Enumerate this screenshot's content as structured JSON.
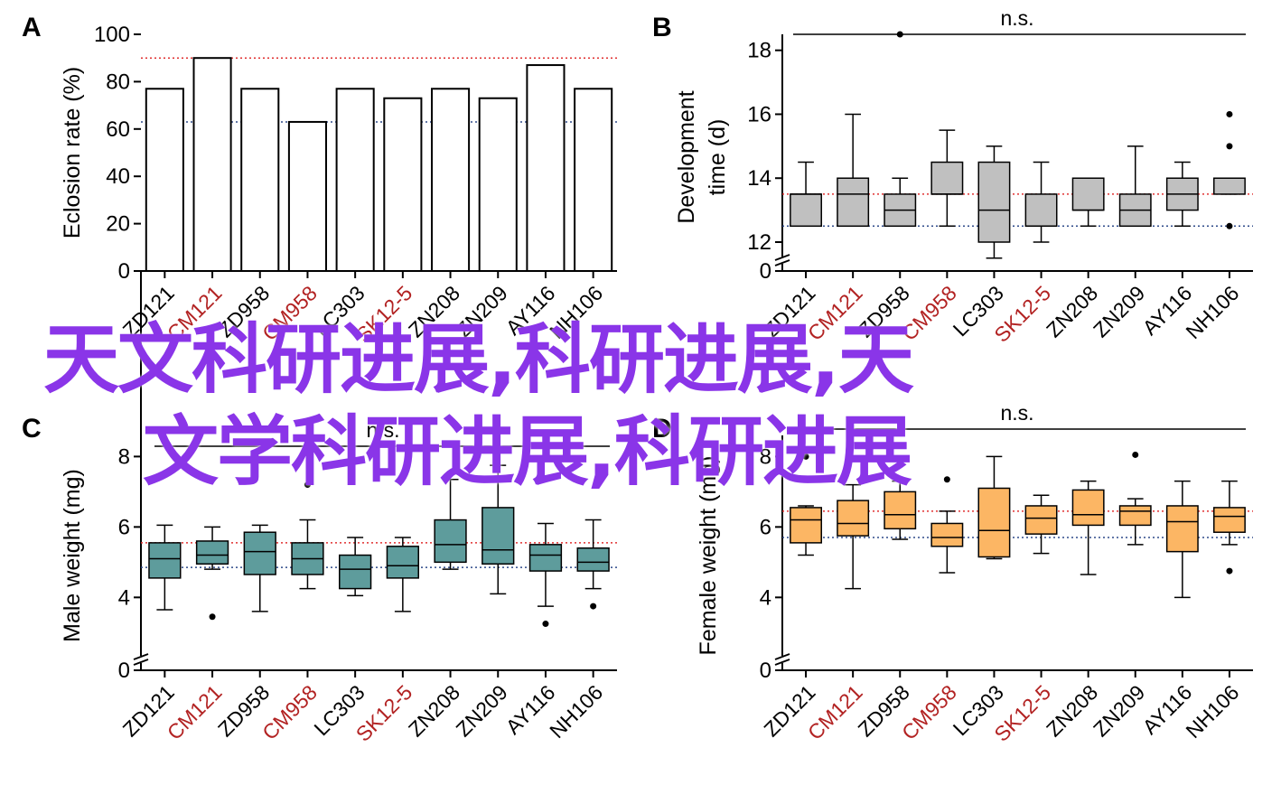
{
  "colors": {
    "red_category": "#b22222",
    "black_category": "#000000",
    "bar_fill": "#ffffff",
    "panel_b_box": "#c0c0c0",
    "panel_c_box": "#5e9c9c",
    "panel_d_box": "#fcb664",
    "ref_red": "#e03030",
    "ref_blue": "#2e4a8a",
    "watermark": "#8a35e8"
  },
  "overlay_text": {
    "line1": "天文科研进展,科研进展,天",
    "line2": "文学科研进展,科研进展"
  },
  "chart_data": [
    {
      "panel": "A",
      "type": "bar",
      "ylabel": "Eclosion rate (%)",
      "ylim": [
        0,
        100
      ],
      "yticks": [
        "0",
        "20",
        "40",
        "60",
        "80",
        "100"
      ],
      "categories": [
        "ZD121",
        "CM121",
        "ZD958",
        "CM958",
        "LC303",
        "SK12-5",
        "ZN208",
        "ZN209",
        "AY116",
        "NH106"
      ],
      "highlight_categories": [
        "CM121",
        "CM958",
        "SK12-5"
      ],
      "values": [
        77,
        90,
        77,
        63,
        77,
        73,
        77,
        73,
        87,
        77
      ],
      "ref_lines": [
        {
          "value": 90,
          "color": "red"
        },
        {
          "value": 63,
          "color": "blue"
        }
      ]
    },
    {
      "panel": "B",
      "type": "box",
      "ylabel": "Development time (d)",
      "ylim": [
        12,
        18.5
      ],
      "yticks": [
        "0",
        "12",
        "14",
        "16",
        "18"
      ],
      "axis_break": true,
      "categories": [
        "ZD121",
        "CM121",
        "ZD958",
        "CM958",
        "LC303",
        "SK12-5",
        "ZN208",
        "ZN209",
        "AY116",
        "NH106"
      ],
      "highlight_categories": [
        "CM121",
        "CM958",
        "SK12-5"
      ],
      "annotation": "n.s.",
      "boxes": [
        {
          "wlo": 12.5,
          "q1": 12.5,
          "med": 13.5,
          "q3": 13.5,
          "whi": 14.5,
          "out": []
        },
        {
          "wlo": 12.5,
          "q1": 12.5,
          "med": 13.5,
          "q3": 14.0,
          "whi": 16.0,
          "out": []
        },
        {
          "wlo": 12.5,
          "q1": 12.5,
          "med": 13.0,
          "q3": 13.5,
          "whi": 14.0,
          "out": [
            18.5
          ]
        },
        {
          "wlo": 12.5,
          "q1": 13.5,
          "med": 13.5,
          "q3": 14.5,
          "whi": 15.5,
          "out": []
        },
        {
          "wlo": 11.5,
          "q1": 12.0,
          "med": 13.0,
          "q3": 14.5,
          "whi": 15.0,
          "out": []
        },
        {
          "wlo": 12.0,
          "q1": 12.5,
          "med": 12.5,
          "q3": 13.5,
          "whi": 14.5,
          "out": []
        },
        {
          "wlo": 12.5,
          "q1": 13.0,
          "med": 13.0,
          "q3": 14.0,
          "whi": 14.0,
          "out": []
        },
        {
          "wlo": 12.5,
          "q1": 12.5,
          "med": 13.0,
          "q3": 13.5,
          "whi": 15.0,
          "out": []
        },
        {
          "wlo": 12.5,
          "q1": 13.0,
          "med": 13.5,
          "q3": 14.0,
          "whi": 14.5,
          "out": []
        },
        {
          "wlo": 13.5,
          "q1": 13.5,
          "med": 14.0,
          "q3": 14.0,
          "whi": 14.0,
          "out": [
            16.0,
            15.0,
            12.5
          ]
        }
      ],
      "ref_lines": [
        {
          "value": 13.5,
          "color": "red"
        },
        {
          "value": 12.5,
          "color": "blue"
        }
      ]
    },
    {
      "panel": "C",
      "type": "box",
      "ylabel": "Male weight (mg)",
      "ylim": [
        2.7,
        8.6
      ],
      "yticks": [
        "0",
        "4",
        "6",
        "8"
      ],
      "axis_break": true,
      "categories": [
        "ZD121",
        "CM121",
        "ZD958",
        "CM958",
        "LC303",
        "SK12-5",
        "ZN208",
        "ZN209",
        "AY116",
        "NH106"
      ],
      "highlight_categories": [
        "CM121",
        "CM958",
        "SK12-5"
      ],
      "annotation": "n.s.",
      "boxes": [
        {
          "wlo": 3.65,
          "q1": 4.55,
          "med": 5.1,
          "q3": 5.55,
          "whi": 6.05,
          "out": []
        },
        {
          "wlo": 4.8,
          "q1": 4.95,
          "med": 5.2,
          "q3": 5.6,
          "whi": 6.0,
          "out": [
            3.45
          ]
        },
        {
          "wlo": 3.6,
          "q1": 4.65,
          "med": 5.3,
          "q3": 5.85,
          "whi": 6.05,
          "out": []
        },
        {
          "wlo": 4.25,
          "q1": 4.65,
          "med": 5.1,
          "q3": 5.55,
          "whi": 6.2,
          "out": [
            7.2
          ]
        },
        {
          "wlo": 4.05,
          "q1": 4.25,
          "med": 4.8,
          "q3": 5.2,
          "whi": 5.7,
          "out": []
        },
        {
          "wlo": 3.6,
          "q1": 4.55,
          "med": 4.9,
          "q3": 5.45,
          "whi": 5.7,
          "out": []
        },
        {
          "wlo": 4.8,
          "q1": 5.0,
          "med": 5.5,
          "q3": 6.2,
          "whi": 7.35,
          "out": []
        },
        {
          "wlo": 4.1,
          "q1": 4.95,
          "med": 5.35,
          "q3": 6.55,
          "whi": 7.75,
          "out": []
        },
        {
          "wlo": 3.75,
          "q1": 4.75,
          "med": 5.2,
          "q3": 5.5,
          "whi": 6.1,
          "out": [
            3.25
          ]
        },
        {
          "wlo": 4.25,
          "q1": 4.75,
          "med": 5.0,
          "q3": 5.4,
          "whi": 6.2,
          "out": [
            3.75
          ]
        }
      ],
      "ref_lines": [
        {
          "value": 5.55,
          "color": "red"
        },
        {
          "value": 4.85,
          "color": "blue"
        }
      ]
    },
    {
      "panel": "D",
      "type": "box",
      "ylabel": "Female weight (mg)",
      "ylim": [
        2.7,
        8.6
      ],
      "yticks": [
        "0",
        "4",
        "6",
        "8"
      ],
      "axis_break": true,
      "categories": [
        "ZD121",
        "CM121",
        "ZD958",
        "CM958",
        "LC303",
        "SK12-5",
        "ZN208",
        "ZN209",
        "AY116",
        "NH106"
      ],
      "highlight_categories": [
        "CM121",
        "CM958",
        "SK12-5"
      ],
      "annotation": "n.s.",
      "boxes": [
        {
          "wlo": 5.2,
          "q1": 5.55,
          "med": 6.2,
          "q3": 6.55,
          "whi": 6.6,
          "out": [
            8.0
          ]
        },
        {
          "wlo": 4.25,
          "q1": 5.75,
          "med": 6.1,
          "q3": 6.75,
          "whi": 7.2,
          "out": []
        },
        {
          "wlo": 5.65,
          "q1": 5.95,
          "med": 6.35,
          "q3": 7.0,
          "whi": 7.3,
          "out": []
        },
        {
          "wlo": 4.7,
          "q1": 5.45,
          "med": 5.7,
          "q3": 6.1,
          "whi": 6.45,
          "out": [
            7.35
          ]
        },
        {
          "wlo": 5.1,
          "q1": 5.15,
          "med": 5.9,
          "q3": 7.1,
          "whi": 8.0,
          "out": []
        },
        {
          "wlo": 5.25,
          "q1": 5.8,
          "med": 6.25,
          "q3": 6.6,
          "whi": 6.9,
          "out": []
        },
        {
          "wlo": 4.65,
          "q1": 6.05,
          "med": 6.35,
          "q3": 7.05,
          "whi": 7.3,
          "out": []
        },
        {
          "wlo": 5.5,
          "q1": 6.05,
          "med": 6.45,
          "q3": 6.6,
          "whi": 6.8,
          "out": [
            8.05
          ]
        },
        {
          "wlo": 4.0,
          "q1": 5.3,
          "med": 6.15,
          "q3": 6.6,
          "whi": 7.3,
          "out": []
        },
        {
          "wlo": 5.5,
          "q1": 5.85,
          "med": 6.3,
          "q3": 6.55,
          "whi": 7.3,
          "out": [
            4.75
          ]
        }
      ],
      "ref_lines": [
        {
          "value": 6.45,
          "color": "red"
        },
        {
          "value": 5.7,
          "color": "blue"
        }
      ]
    }
  ]
}
